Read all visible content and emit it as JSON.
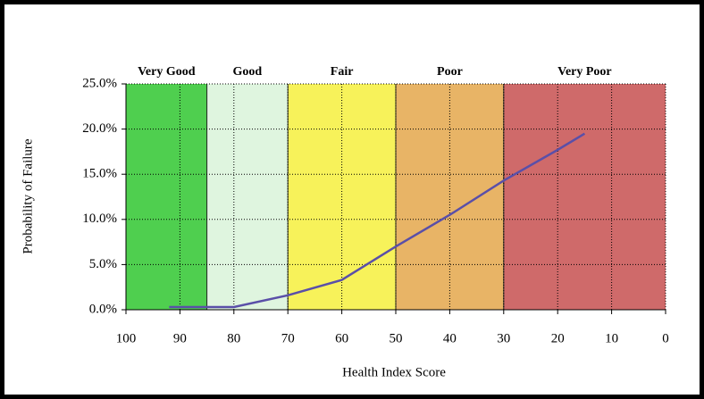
{
  "chart_data": {
    "type": "line",
    "x_label": "Health Index Score",
    "y_label": "Probability of Failure",
    "xlim": [
      100,
      0
    ],
    "xticks": [
      100,
      90,
      80,
      70,
      60,
      50,
      40,
      30,
      20,
      10,
      0
    ],
    "ylim": [
      0,
      25
    ],
    "yticks": [
      {
        "value": 0,
        "label": "0.0%"
      },
      {
        "value": 5,
        "label": "5.0%"
      },
      {
        "value": 10,
        "label": "10.0%"
      },
      {
        "value": 15,
        "label": "15.0%"
      },
      {
        "value": 20,
        "label": "20.0%"
      },
      {
        "value": 25,
        "label": "25.0%"
      }
    ],
    "grid": true,
    "bands": [
      {
        "label": "Very Good",
        "from": 100,
        "to": 85,
        "color": "#4fcf4f"
      },
      {
        "label": "Good",
        "from": 85,
        "to": 70,
        "color": "#dff5df"
      },
      {
        "label": "Fair",
        "from": 70,
        "to": 50,
        "color": "#f7f25a"
      },
      {
        "label": "Poor",
        "from": 50,
        "to": 30,
        "color": "#e8b466"
      },
      {
        "label": "Very Poor",
        "from": 30,
        "to": 0,
        "color": "#cf6a6a"
      }
    ],
    "series": [
      {
        "color": "#5a4fa8",
        "x": [
          92,
          80,
          70,
          60,
          50,
          40,
          30,
          20,
          15
        ],
        "values": [
          0.3,
          0.3,
          1.6,
          3.3,
          7.0,
          10.5,
          14.3,
          17.7,
          19.5
        ]
      }
    ]
  }
}
